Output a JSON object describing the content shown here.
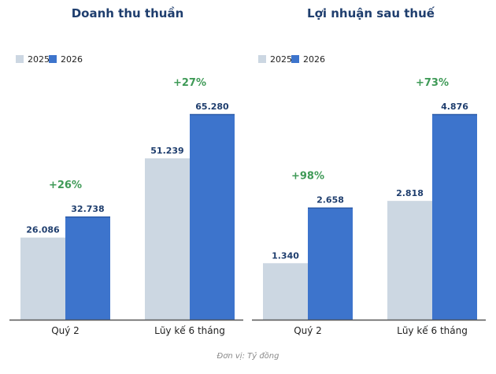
{
  "chart_data": [
    {
      "type": "bar",
      "title": "Doanh thu thuần",
      "categories": [
        "Quý 2",
        "Lũy kế 6 tháng"
      ],
      "series": [
        {
          "name": "2025",
          "values": [
            26086,
            51239
          ],
          "labels": [
            "26.086",
            "51.239"
          ],
          "color": "#ccd7e2"
        },
        {
          "name": "2026",
          "values": [
            32738,
            65280
          ],
          "labels": [
            "32.738",
            "65.280"
          ],
          "color": "#3d74cc"
        }
      ],
      "growth": [
        "+26%",
        "+27%"
      ],
      "ylim": [
        0,
        73000
      ],
      "legend": "top-left",
      "grid": false
    },
    {
      "type": "bar",
      "title": "Lợi nhuận sau thuế",
      "categories": [
        "Quý 2",
        "Lũy kế 6 tháng"
      ],
      "series": [
        {
          "name": "2025",
          "values": [
            1340,
            2818
          ],
          "labels": [
            "1.340",
            "2.818"
          ],
          "color": "#ccd7e2"
        },
        {
          "name": "2026",
          "values": [
            2658,
            4876
          ],
          "labels": [
            "2.658",
            "4.876"
          ],
          "color": "#3d74cc"
        }
      ],
      "growth": [
        "+98%",
        "+73%"
      ],
      "ylim": [
        0,
        5450
      ],
      "legend": "top-left",
      "grid": false
    }
  ],
  "footnote": "Đơn vị: Tỷ đồng",
  "colors": {
    "title": "#1f3e6e",
    "growth": "#3f9a57",
    "axis": "#555555"
  }
}
